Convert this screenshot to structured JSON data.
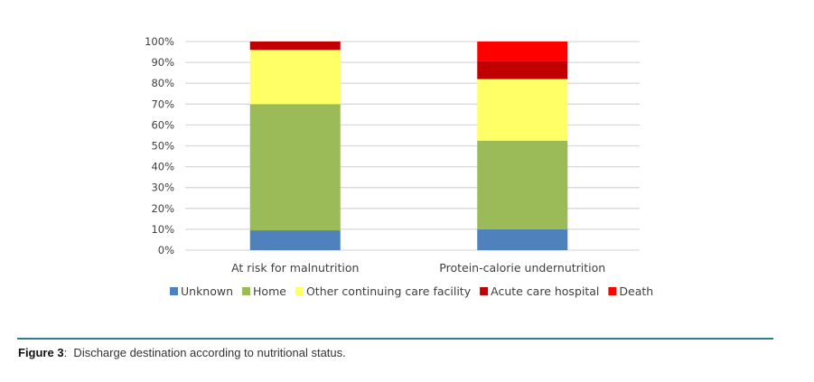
{
  "chart_data": {
    "type": "bar",
    "stacked": true,
    "percent_stacked": true,
    "title": "",
    "xlabel": "",
    "ylabel": "",
    "ylim": [
      0,
      100
    ],
    "yticks": [
      0,
      10,
      20,
      30,
      40,
      50,
      60,
      70,
      80,
      90,
      100
    ],
    "ytick_format": "{v}%",
    "grid": true,
    "legend_position": "bottom",
    "categories": [
      "At risk for malnutrition",
      "Protein-calorie undernutrition"
    ],
    "series": [
      {
        "name": "Unknown",
        "color": "#4f81bd",
        "values": [
          9.5,
          10
        ]
      },
      {
        "name": "Home",
        "color": "#9bbb59",
        "values": [
          60.5,
          42.5
        ]
      },
      {
        "name": "Other continuing care facility",
        "color": "#ffff66",
        "values": [
          26,
          29.5
        ]
      },
      {
        "name": "Acute care hospital",
        "color": "#c00000",
        "values": [
          4,
          8.5
        ]
      },
      {
        "name": "Death",
        "color": "#ff0000",
        "values": [
          0,
          9.5
        ]
      }
    ]
  },
  "caption": {
    "label": "Figure 3",
    "separator": ":",
    "text": "  Discharge destination according to nutritional status."
  },
  "colors": {
    "divider": "#2f7f8f",
    "gridline": "#d9d9d9",
    "text": "#404040"
  }
}
